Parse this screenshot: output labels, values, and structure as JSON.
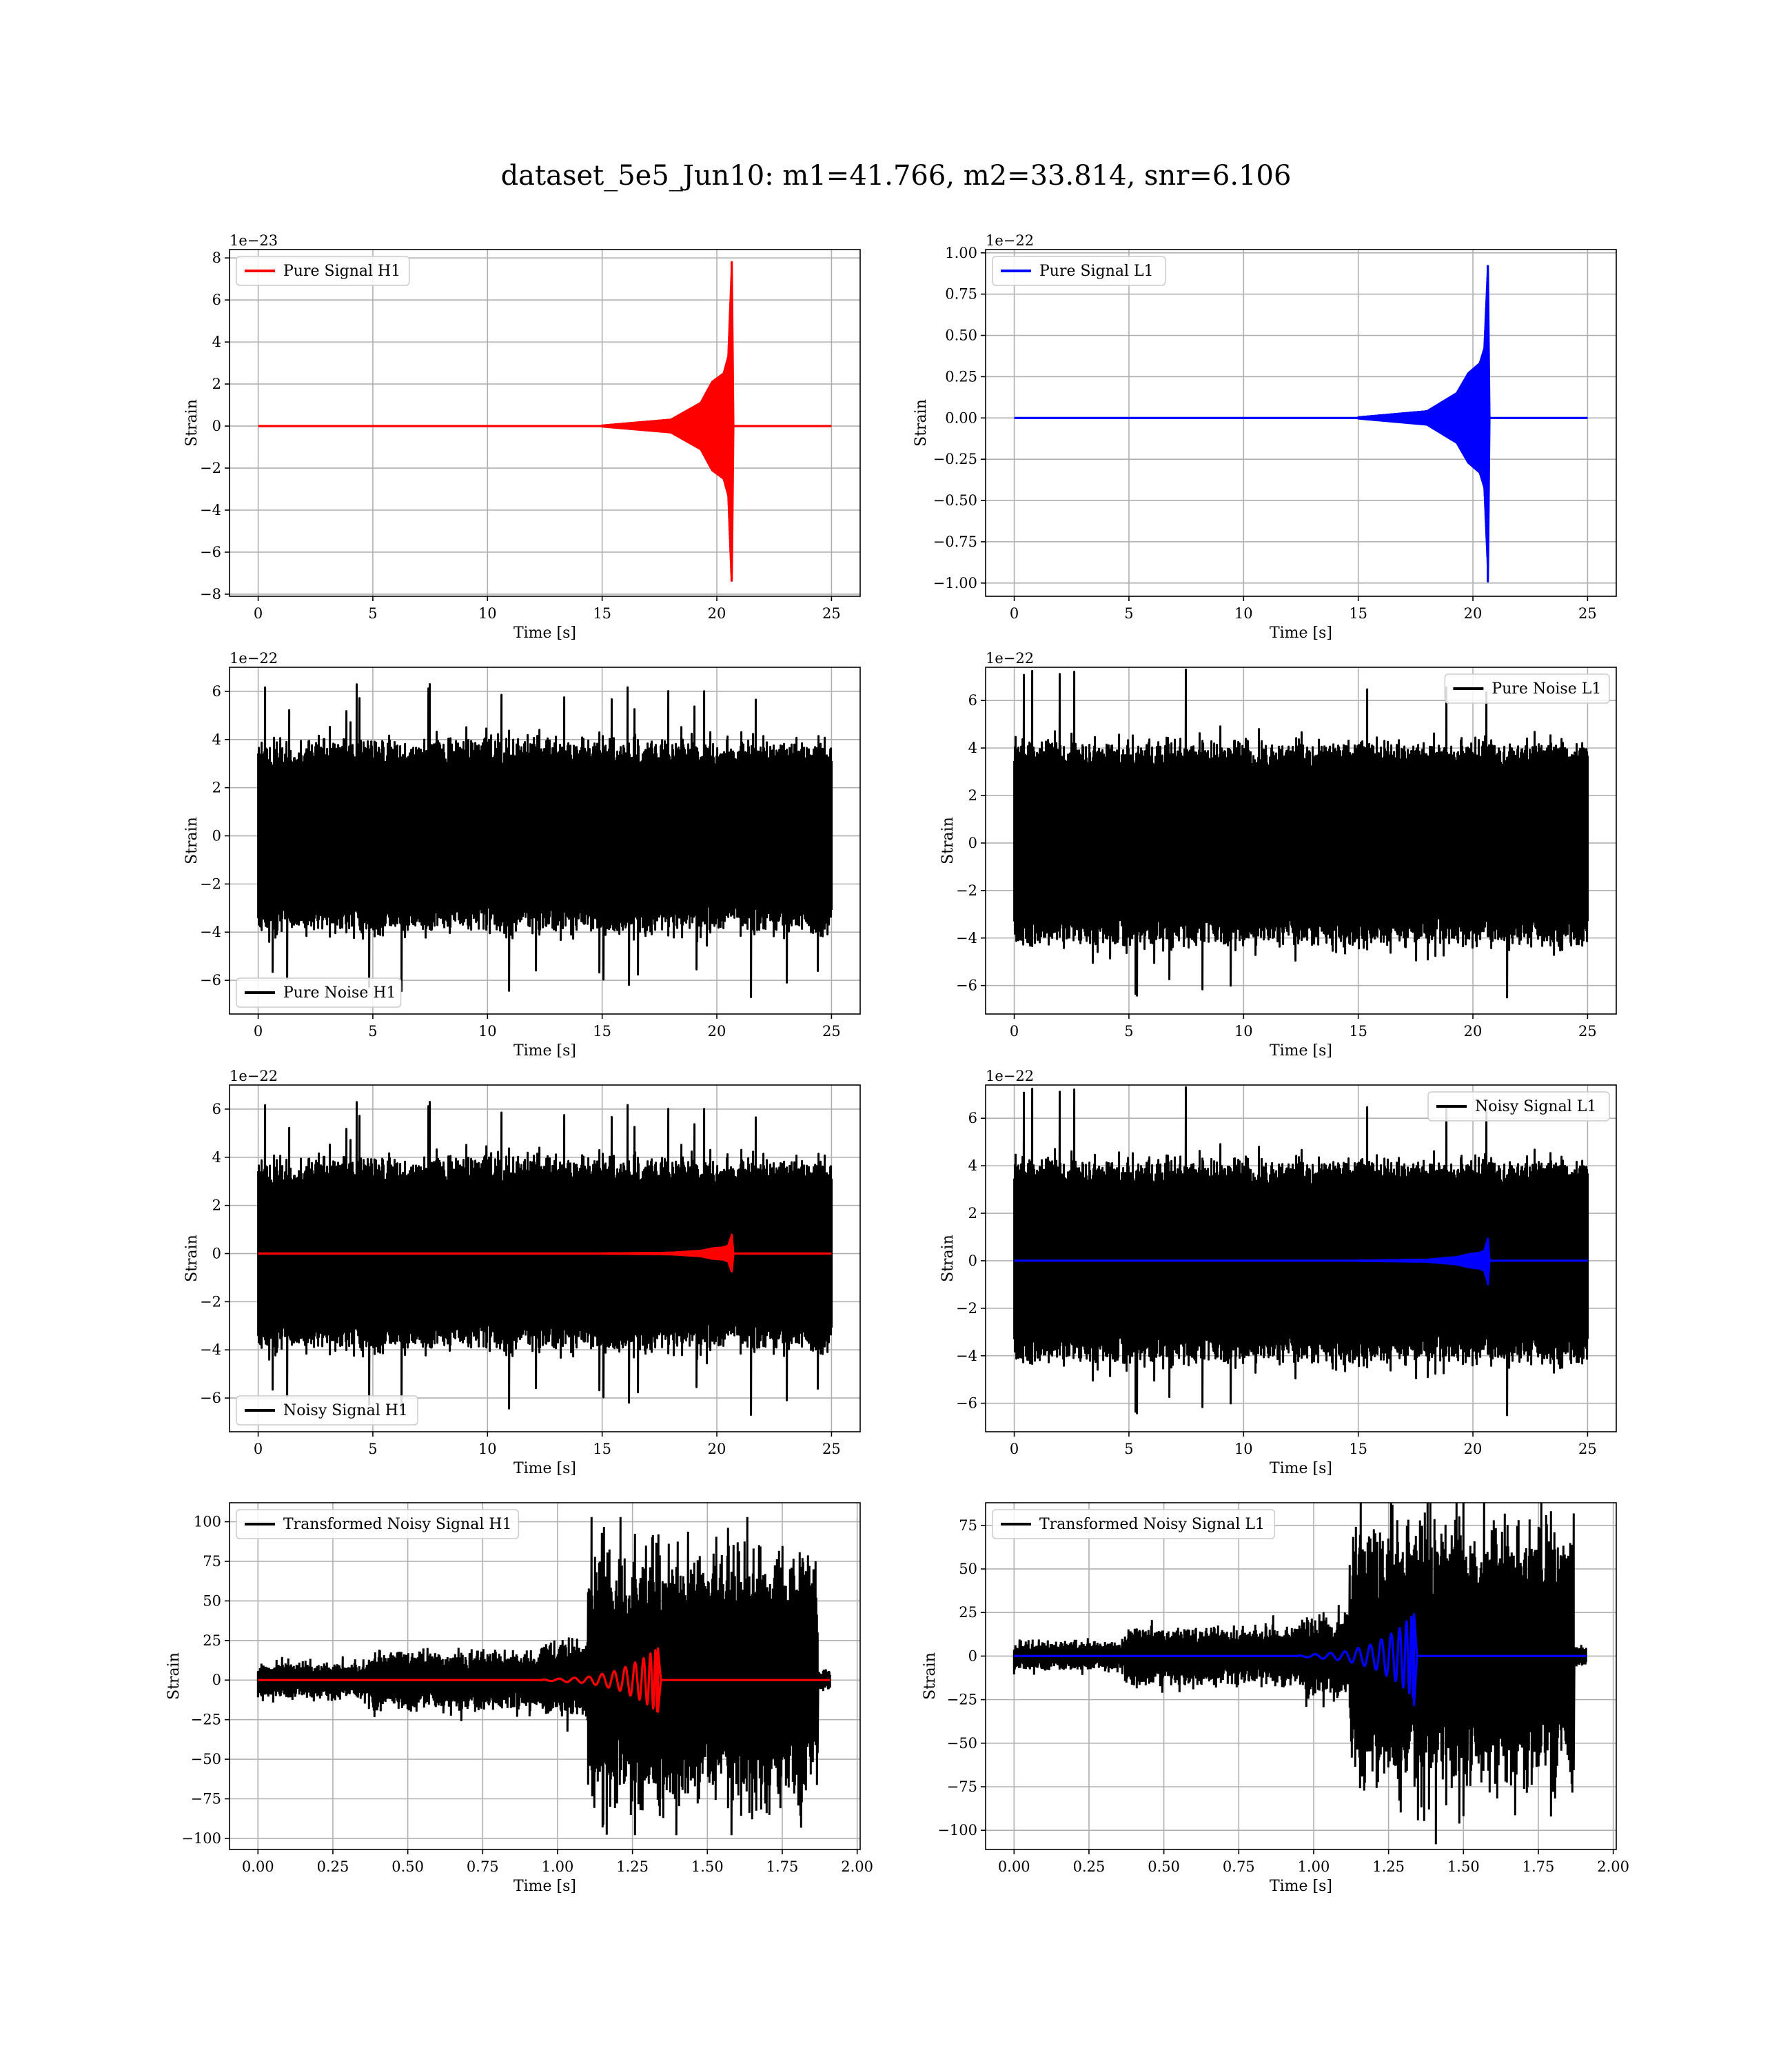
{
  "figure_title": "dataset_5e5_Jun10: m1=41.766, m2=33.814, snr=6.106",
  "chart_data": [
    {
      "id": "pure-signal-h1",
      "type": "line",
      "xlabel": "Time [s]",
      "ylabel": "Strain",
      "offset_text": "1e−23",
      "xlim": [
        -1.25,
        26.25
      ],
      "ylim": [
        -8.1,
        8.4
      ],
      "xticks": [
        0,
        5,
        10,
        15,
        20,
        25
      ],
      "xtick_labels": [
        "0",
        "5",
        "10",
        "15",
        "20",
        "25"
      ],
      "yticks": [
        -8,
        -6,
        -4,
        -2,
        0,
        2,
        4,
        6,
        8
      ],
      "ytick_labels": [
        "−8",
        "−6",
        "−4",
        "−2",
        "0",
        "2",
        "4",
        "6",
        "8"
      ],
      "grid": true,
      "legend": {
        "position": "upper-left",
        "entries": [
          {
            "label": "Pure Signal H1",
            "color": "#ff0000"
          }
        ]
      },
      "series": [
        {
          "name": "Pure Signal H1",
          "color": "#ff0000",
          "kind": "chirp",
          "x_range": [
            0,
            25
          ],
          "start": 15.0,
          "merger": 20.65,
          "peak_pos": 7.8,
          "peak_neg": -7.3,
          "envelope": [
            [
              15.0,
              0.02
            ],
            [
              18.0,
              0.3
            ],
            [
              19.3,
              1.1
            ],
            [
              19.8,
              2.1
            ],
            [
              20.3,
              2.5
            ],
            [
              20.5,
              3.3
            ],
            [
              20.65,
              7.5
            ],
            [
              20.72,
              0
            ]
          ]
        }
      ]
    },
    {
      "id": "pure-signal-l1",
      "type": "line",
      "xlabel": "Time [s]",
      "ylabel": "Strain",
      "offset_text": "1e−22",
      "xlim": [
        -1.25,
        26.25
      ],
      "ylim": [
        -1.08,
        1.02
      ],
      "xticks": [
        0,
        5,
        10,
        15,
        20,
        25
      ],
      "xtick_labels": [
        "0",
        "5",
        "10",
        "15",
        "20",
        "25"
      ],
      "yticks": [
        -1.0,
        -0.75,
        -0.5,
        -0.25,
        0.0,
        0.25,
        0.5,
        0.75,
        1.0
      ],
      "ytick_labels": [
        "−1.00",
        "−0.75",
        "−0.50",
        "−0.25",
        "0.00",
        "0.25",
        "0.50",
        "0.75",
        "1.00"
      ],
      "grid": true,
      "legend": {
        "position": "upper-left",
        "entries": [
          {
            "label": "Pure Signal L1",
            "color": "#0000ff"
          }
        ]
      },
      "series": [
        {
          "name": "Pure Signal L1",
          "color": "#0000ff",
          "kind": "chirp",
          "x_range": [
            0,
            25
          ],
          "start": 15.0,
          "merger": 20.65,
          "peak_pos": 0.92,
          "peak_neg": -0.99,
          "envelope": [
            [
              15.0,
              0.003
            ],
            [
              18.0,
              0.04
            ],
            [
              19.3,
              0.15
            ],
            [
              19.8,
              0.27
            ],
            [
              20.3,
              0.33
            ],
            [
              20.5,
              0.42
            ],
            [
              20.65,
              0.9
            ],
            [
              20.72,
              0
            ]
          ]
        }
      ]
    },
    {
      "id": "pure-noise-h1",
      "type": "line",
      "xlabel": "Time [s]",
      "ylabel": "Strain",
      "offset_text": "1e−22",
      "xlim": [
        -1.25,
        26.25
      ],
      "ylim": [
        -7.4,
        7.0
      ],
      "xticks": [
        0,
        5,
        10,
        15,
        20,
        25
      ],
      "xtick_labels": [
        "0",
        "5",
        "10",
        "15",
        "20",
        "25"
      ],
      "yticks": [
        -6,
        -4,
        -2,
        0,
        2,
        4,
        6
      ],
      "ytick_labels": [
        "−6",
        "−4",
        "−2",
        "0",
        "2",
        "4",
        "6"
      ],
      "grid": true,
      "legend": {
        "position": "lower-left",
        "entries": [
          {
            "label": "Pure Noise H1",
            "color": "#000000"
          }
        ]
      },
      "series": [
        {
          "name": "Pure Noise H1",
          "color": "#000000",
          "kind": "noise",
          "x_range": [
            0,
            25
          ],
          "seed": 11,
          "base": 3.3,
          "max_pos": 6.3,
          "max_neg": -6.7
        }
      ]
    },
    {
      "id": "pure-noise-l1",
      "type": "line",
      "xlabel": "Time [s]",
      "ylabel": "Strain",
      "offset_text": "1e−22",
      "xlim": [
        -1.25,
        26.25
      ],
      "ylim": [
        -7.2,
        7.4
      ],
      "xticks": [
        0,
        5,
        10,
        15,
        20,
        25
      ],
      "xtick_labels": [
        "0",
        "5",
        "10",
        "15",
        "20",
        "25"
      ],
      "yticks": [
        -6,
        -4,
        -2,
        0,
        2,
        4,
        6
      ],
      "ytick_labels": [
        "−6",
        "−4",
        "−2",
        "0",
        "2",
        "4",
        "6"
      ],
      "grid": true,
      "legend": {
        "position": "upper-right",
        "entries": [
          {
            "label": "Pure Noise L1",
            "color": "#000000"
          }
        ]
      },
      "series": [
        {
          "name": "Pure Noise L1",
          "color": "#000000",
          "kind": "noise",
          "x_range": [
            0,
            25
          ],
          "seed": 23,
          "base": 3.6,
          "max_pos": 7.3,
          "max_neg": -6.5
        }
      ]
    },
    {
      "id": "noisy-signal-h1",
      "type": "line",
      "xlabel": "Time [s]",
      "ylabel": "Strain",
      "offset_text": "1e−22",
      "xlim": [
        -1.25,
        26.25
      ],
      "ylim": [
        -7.4,
        7.0
      ],
      "xticks": [
        0,
        5,
        10,
        15,
        20,
        25
      ],
      "xtick_labels": [
        "0",
        "5",
        "10",
        "15",
        "20",
        "25"
      ],
      "yticks": [
        -6,
        -4,
        -2,
        0,
        2,
        4,
        6
      ],
      "ytick_labels": [
        "−6",
        "−4",
        "−2",
        "0",
        "2",
        "4",
        "6"
      ],
      "grid": true,
      "legend": {
        "position": "lower-left",
        "entries": [
          {
            "label": "Noisy Signal H1",
            "color": "#000000"
          }
        ]
      },
      "series": [
        {
          "name": "Noisy Signal H1",
          "color": "#000000",
          "kind": "noise",
          "x_range": [
            0,
            25
          ],
          "seed": 11,
          "base": 3.3,
          "max_pos": 6.3,
          "max_neg": -6.7
        },
        {
          "name": "Pure Signal H1",
          "color": "#ff0000",
          "kind": "chirp",
          "x_range": [
            0,
            25
          ],
          "start": 15.0,
          "merger": 20.65,
          "peak_pos": 0.78,
          "peak_neg": -0.73,
          "envelope": [
            [
              15.0,
              0.002
            ],
            [
              18.0,
              0.03
            ],
            [
              19.3,
              0.11
            ],
            [
              19.8,
              0.21
            ],
            [
              20.3,
              0.25
            ],
            [
              20.5,
              0.33
            ],
            [
              20.65,
              0.75
            ],
            [
              20.72,
              0
            ]
          ]
        }
      ]
    },
    {
      "id": "noisy-signal-l1",
      "type": "line",
      "xlabel": "Time [s]",
      "ylabel": "Strain",
      "offset_text": "1e−22",
      "xlim": [
        -1.25,
        26.25
      ],
      "ylim": [
        -7.2,
        7.4
      ],
      "xticks": [
        0,
        5,
        10,
        15,
        20,
        25
      ],
      "xtick_labels": [
        "0",
        "5",
        "10",
        "15",
        "20",
        "25"
      ],
      "yticks": [
        -6,
        -4,
        -2,
        0,
        2,
        4,
        6
      ],
      "ytick_labels": [
        "−6",
        "−4",
        "−2",
        "0",
        "2",
        "4",
        "6"
      ],
      "grid": true,
      "legend": {
        "position": "upper-right",
        "entries": [
          {
            "label": "Noisy Signal L1",
            "color": "#000000"
          }
        ]
      },
      "series": [
        {
          "name": "Noisy Signal L1",
          "color": "#000000",
          "kind": "noise",
          "x_range": [
            0,
            25
          ],
          "seed": 23,
          "base": 3.6,
          "max_pos": 7.3,
          "max_neg": -6.5
        },
        {
          "name": "Pure Signal L1",
          "color": "#0000ff",
          "kind": "chirp",
          "x_range": [
            0,
            25
          ],
          "start": 15.0,
          "merger": 20.65,
          "peak_pos": 0.92,
          "peak_neg": -0.99,
          "envelope": [
            [
              15.0,
              0.003
            ],
            [
              18.0,
              0.04
            ],
            [
              19.3,
              0.15
            ],
            [
              19.8,
              0.27
            ],
            [
              20.3,
              0.33
            ],
            [
              20.5,
              0.42
            ],
            [
              20.65,
              0.9
            ],
            [
              20.72,
              0
            ]
          ]
        }
      ]
    },
    {
      "id": "transformed-noisy-signal-h1",
      "type": "line",
      "xlabel": "Time [s]",
      "ylabel": "Strain",
      "offset_text": "",
      "xlim": [
        -0.095,
        2.01
      ],
      "ylim": [
        -107,
        112
      ],
      "xticks": [
        0.0,
        0.25,
        0.5,
        0.75,
        1.0,
        1.25,
        1.5,
        1.75,
        2.0
      ],
      "xtick_labels": [
        "0.00",
        "0.25",
        "0.50",
        "0.75",
        "1.00",
        "1.25",
        "1.50",
        "1.75",
        "2.00"
      ],
      "yticks": [
        -100,
        -75,
        -50,
        -25,
        0,
        25,
        50,
        75,
        100
      ],
      "ytick_labels": [
        "−100",
        "−75",
        "−50",
        "−25",
        "0",
        "25",
        "50",
        "75",
        "100"
      ],
      "grid": true,
      "legend": {
        "position": "upper-left",
        "entries": [
          {
            "label": "Transformed Noisy Signal H1",
            "color": "#000000"
          }
        ]
      },
      "series": [
        {
          "name": "Transformed Noisy Signal H1",
          "color": "#000000",
          "kind": "whitened",
          "x_range": [
            0,
            1.91
          ],
          "seed": 37,
          "segments": [
            [
              0.0,
              0.37,
              8
            ],
            [
              0.37,
              0.95,
              13
            ],
            [
              0.95,
              1.1,
              18
            ],
            [
              1.1,
              1.87,
              58
            ],
            [
              1.87,
              1.91,
              5
            ]
          ],
          "max_pos": 103,
          "max_neg": -98
        },
        {
          "name": "Pure Signal H1",
          "color": "#ff0000",
          "kind": "chirp",
          "x_range": [
            0,
            1.91
          ],
          "start": 0.95,
          "merger": 1.335,
          "peak_pos": 20,
          "peak_neg": -20,
          "cycles": 11,
          "envelope": [
            [
              0.95,
              0.3
            ],
            [
              1.1,
              2
            ],
            [
              1.2,
              6
            ],
            [
              1.28,
              13
            ],
            [
              1.335,
              20
            ],
            [
              1.345,
              0
            ]
          ]
        }
      ]
    },
    {
      "id": "transformed-noisy-signal-l1",
      "type": "line",
      "xlabel": "Time [s]",
      "ylabel": "Strain",
      "offset_text": "",
      "xlim": [
        -0.095,
        2.01
      ],
      "ylim": [
        -111,
        88
      ],
      "xticks": [
        0.0,
        0.25,
        0.5,
        0.75,
        1.0,
        1.25,
        1.5,
        1.75,
        2.0
      ],
      "xtick_labels": [
        "0.00",
        "0.25",
        "0.50",
        "0.75",
        "1.00",
        "1.25",
        "1.50",
        "1.75",
        "2.00"
      ],
      "yticks": [
        -100,
        -75,
        -50,
        -25,
        0,
        25,
        50,
        75
      ],
      "ytick_labels": [
        "−100",
        "−75",
        "−50",
        "−25",
        "0",
        "25",
        "50",
        "75"
      ],
      "grid": true,
      "legend": {
        "position": "upper-left",
        "entries": [
          {
            "label": "Transformed Noisy Signal L1",
            "color": "#000000"
          }
        ]
      },
      "series": [
        {
          "name": "Transformed Noisy Signal L1",
          "color": "#000000",
          "kind": "whitened",
          "x_range": [
            0,
            1.91
          ],
          "seed": 53,
          "segments": [
            [
              0.0,
              0.37,
              6
            ],
            [
              0.37,
              0.95,
              12
            ],
            [
              0.95,
              1.12,
              16
            ],
            [
              1.12,
              1.87,
              55
            ],
            [
              1.87,
              1.91,
              4
            ]
          ],
          "max_pos": 90,
          "max_neg": -108
        },
        {
          "name": "Pure Signal L1",
          "color": "#0000ff",
          "kind": "chirp",
          "x_range": [
            0,
            1.91
          ],
          "start": 0.95,
          "merger": 1.335,
          "peak_pos": 24,
          "peak_neg": -28,
          "cycles": 11,
          "envelope": [
            [
              0.95,
              0.3
            ],
            [
              1.1,
              2.5
            ],
            [
              1.2,
              7
            ],
            [
              1.28,
              15
            ],
            [
              1.335,
              24
            ],
            [
              1.345,
              0
            ]
          ]
        }
      ]
    }
  ]
}
